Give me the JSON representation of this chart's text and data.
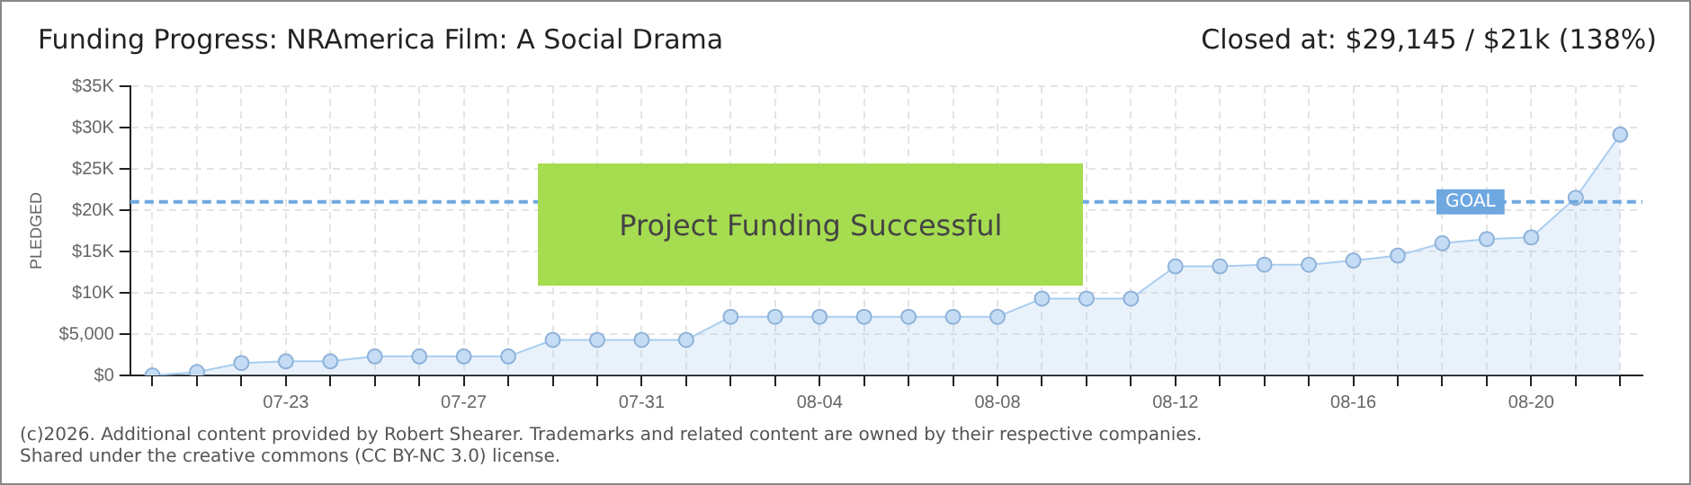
{
  "chart_data": {
    "type": "area",
    "title": "Funding Progress: NRAmerica Film: A Social Drama",
    "subtitle": "Closed at:  $29,145 /  $21k (138%)",
    "ylabel": "PLEDGED",
    "categories": [
      null,
      null,
      null,
      "07-23",
      null,
      null,
      null,
      "07-27",
      null,
      null,
      null,
      "07-31",
      null,
      null,
      null,
      "08-04",
      null,
      null,
      null,
      "08-08",
      null,
      null,
      null,
      "08-12",
      null,
      null,
      null,
      "08-16",
      null,
      null,
      null,
      "08-20",
      null,
      null
    ],
    "series": [
      {
        "color": "#a9cdf0",
        "values": [
          0,
          400,
          1500,
          1700,
          1700,
          2300,
          2300,
          2300,
          2300,
          4300,
          4300,
          4300,
          4300,
          7100,
          7100,
          7100,
          7100,
          7100,
          7100,
          7100,
          9300,
          9300,
          9300,
          13200,
          13200,
          13400,
          13400,
          13900,
          14500,
          16000,
          16500,
          16700,
          21500,
          29145
        ]
      }
    ],
    "ylim": [
      0,
      35000
    ],
    "yticks": [
      {
        "value": 0,
        "label": "$0"
      },
      {
        "value": 5000,
        "label": "$5,000"
      },
      {
        "value": 10000,
        "label": "$10K"
      },
      {
        "value": 15000,
        "label": "$15K"
      },
      {
        "value": 20000,
        "label": "$20K"
      },
      {
        "value": 25000,
        "label": "$25K"
      },
      {
        "value": 30000,
        "label": "$30K"
      },
      {
        "value": 35000,
        "label": "$35K"
      }
    ],
    "ref_lines": [
      {
        "axis": "y",
        "value": 21000,
        "label": "GOAL",
        "color": "#6fa8e0",
        "line_style": "dashed"
      }
    ],
    "annotations": [
      "Project Funding Successful",
      "(c)2026. Additional content provided by Robert Shearer. Trademarks and related content are owned by their respective companies.",
      "Shared under the creative commons (CC BY-NC 3.0) license."
    ],
    "grid": true,
    "marker": "circle",
    "line_style": "solid",
    "legend": false
  }
}
